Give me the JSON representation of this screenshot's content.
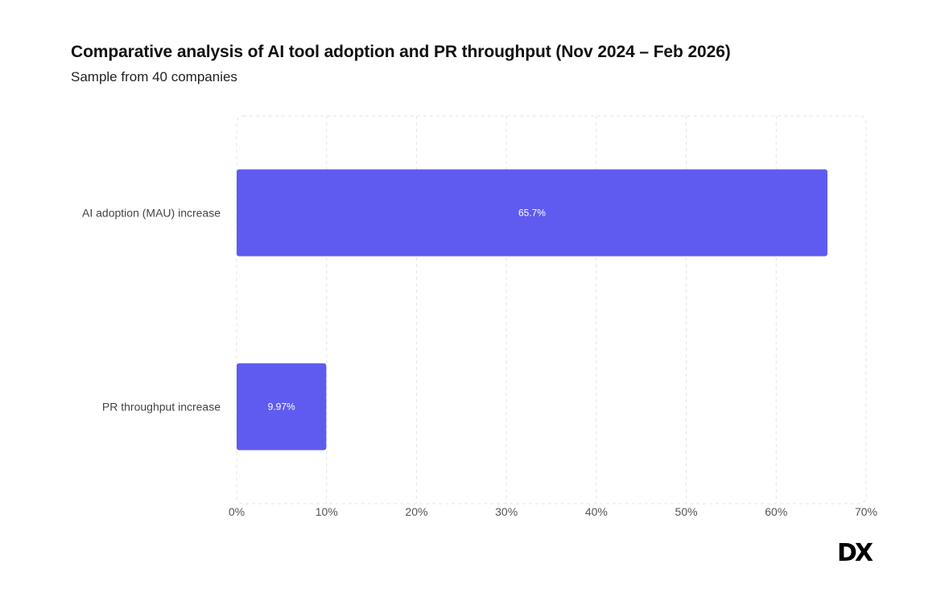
{
  "chart_data": {
    "type": "bar",
    "orientation": "horizontal",
    "title": "Comparative analysis of AI tool adoption and PR throughput (Nov 2024 – Feb 2026)",
    "subtitle": "Sample from 40 companies",
    "categories": [
      "AI adoption (MAU) increase",
      "PR throughput increase"
    ],
    "values": [
      65.7,
      9.97
    ],
    "data_labels": [
      "65.7%",
      "9.97%"
    ],
    "xlim": [
      0,
      70
    ],
    "x_ticks": [
      "0%",
      "10%",
      "20%",
      "30%",
      "40%",
      "50%",
      "60%",
      "70%"
    ],
    "grid": true,
    "bar_color": "#5f5bf0"
  },
  "brand": {
    "logo_text": "DX"
  }
}
